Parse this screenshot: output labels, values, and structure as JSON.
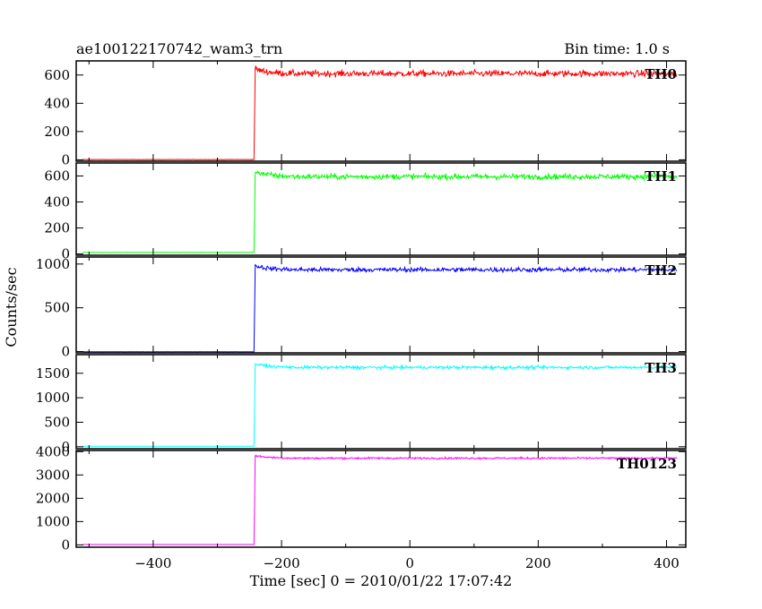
{
  "title": "ae100122170742_wam3_trn",
  "bin_time": "Bin time: 1.0 s",
  "ylabel": "Counts/sec",
  "xlabel": "Time [sec] 0 = 2010/01/22 17:07:42",
  "chart_data": {
    "type": "line",
    "xlim": [
      -520,
      430
    ],
    "x_ticks": [
      -400,
      -200,
      0,
      200,
      400
    ],
    "trigger_time": -242,
    "panels": [
      {
        "name": "TH0",
        "color": "#ff0000",
        "ylim": [
          -10,
          700
        ],
        "y_ticks": [
          0,
          200,
          400,
          600
        ],
        "baseline": 2,
        "level": 610,
        "noise": 28,
        "peak": 645
      },
      {
        "name": "TH1",
        "color": "#00ff00",
        "ylim": [
          -10,
          700
        ],
        "y_ticks": [
          0,
          200,
          400,
          600
        ],
        "baseline": 12,
        "level": 595,
        "noise": 26,
        "peak": 640
      },
      {
        "name": "TH2",
        "color": "#0000ff",
        "ylim": [
          -15,
          1080
        ],
        "y_ticks": [
          0,
          500,
          1000
        ],
        "baseline": -3,
        "level": 935,
        "noise": 32,
        "peak": 985
      },
      {
        "name": "TH3",
        "color": "#00ffff",
        "ylim": [
          -40,
          1880
        ],
        "y_ticks": [
          0,
          500,
          1000,
          1500
        ],
        "baseline": 10,
        "level": 1620,
        "noise": 38,
        "peak": 1700
      },
      {
        "name": "TH0123",
        "color": "#ff00ff",
        "ylim": [
          -100,
          4050
        ],
        "y_ticks": [
          0,
          1000,
          2000,
          3000,
          4000
        ],
        "baseline": 15,
        "level": 3720,
        "noise": 50,
        "peak": 3840
      }
    ]
  }
}
